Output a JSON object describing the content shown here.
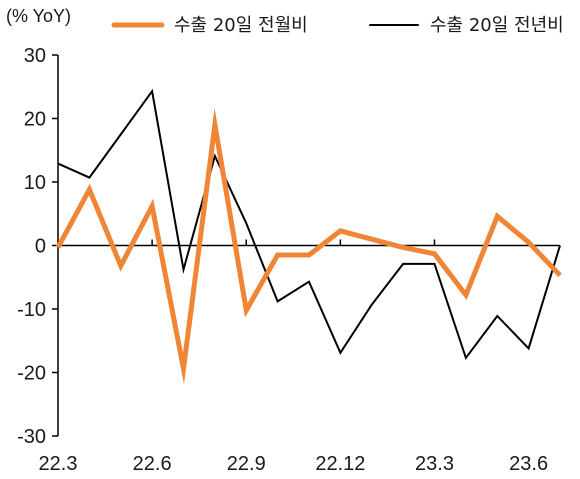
{
  "chart_data": {
    "type": "line",
    "unit_label": "(% YoY)",
    "categories": [
      "22.3",
      "22.4",
      "22.5",
      "22.6",
      "22.7",
      "22.8",
      "22.9",
      "22.10",
      "22.11",
      "22.12",
      "23.1",
      "23.2",
      "23.3",
      "23.4",
      "23.5",
      "23.6",
      "23.7"
    ],
    "x_tick_labels": [
      "22.3",
      "22.6",
      "22.9",
      "22.12",
      "23.3",
      "23.6"
    ],
    "ylim": [
      -30,
      30
    ],
    "y_ticks": [
      30,
      20,
      10,
      0,
      -10,
      -20,
      -30
    ],
    "grid": false,
    "legend_position": "top",
    "series": [
      {
        "name": "수출 20일 전월비",
        "color": "#f08536",
        "values": [
          -0.3,
          8.8,
          -3.2,
          6.2,
          -19.4,
          19.0,
          -10.2,
          -1.5,
          -1.5,
          2.3,
          1.0,
          -0.3,
          -1.3,
          -7.8,
          4.6,
          0.5,
          -4.7
        ]
      },
      {
        "name": "수출 20일 전년비",
        "color": "#000000",
        "values": [
          12.9,
          10.7,
          17.5,
          24.3,
          -3.8,
          14.1,
          3.5,
          -8.8,
          -5.7,
          -16.9,
          -9.3,
          -2.9,
          -2.9,
          -17.7,
          -11.1,
          -16.2,
          0.0
        ]
      }
    ]
  }
}
